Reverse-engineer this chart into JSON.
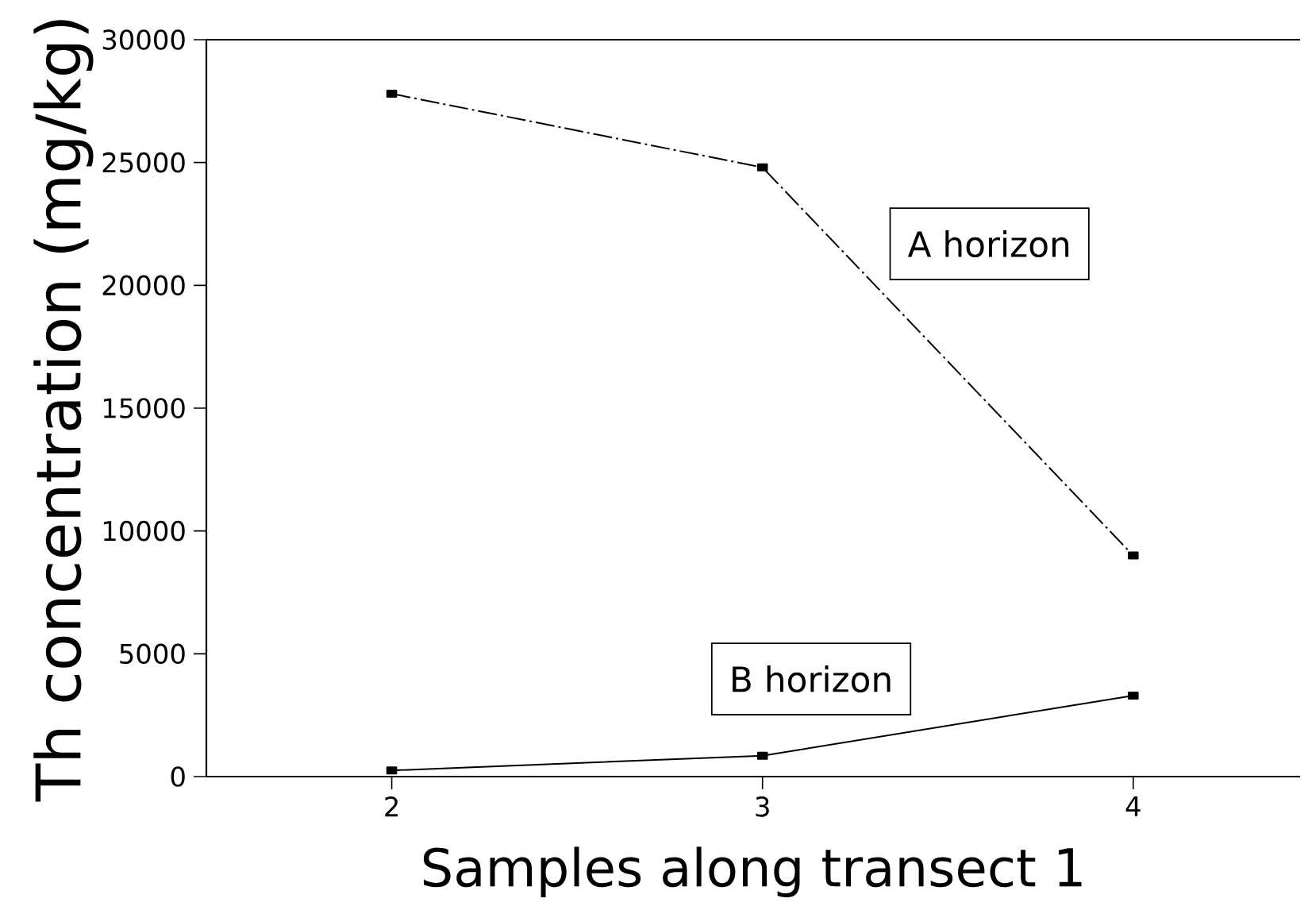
{
  "chart_data": {
    "type": "line",
    "xlabel": "Samples along transect 1",
    "ylabel": "Th concentration (mg/kg)",
    "x": [
      2,
      3,
      4
    ],
    "xlim": [
      1.5,
      4.45
    ],
    "xticks": [
      2,
      3,
      4
    ],
    "ylim": [
      0,
      30000
    ],
    "yticks": [
      0,
      5000,
      10000,
      15000,
      20000,
      25000,
      30000
    ],
    "marker": "square",
    "series": [
      {
        "name": "A horizon",
        "color": "#000000",
        "line_style": "dashed",
        "values": [
          27800,
          24800,
          9000
        ]
      },
      {
        "name": "B horizon",
        "color": "#000000",
        "line_style": "solid",
        "values": [
          250,
          850,
          3300
        ]
      }
    ]
  }
}
